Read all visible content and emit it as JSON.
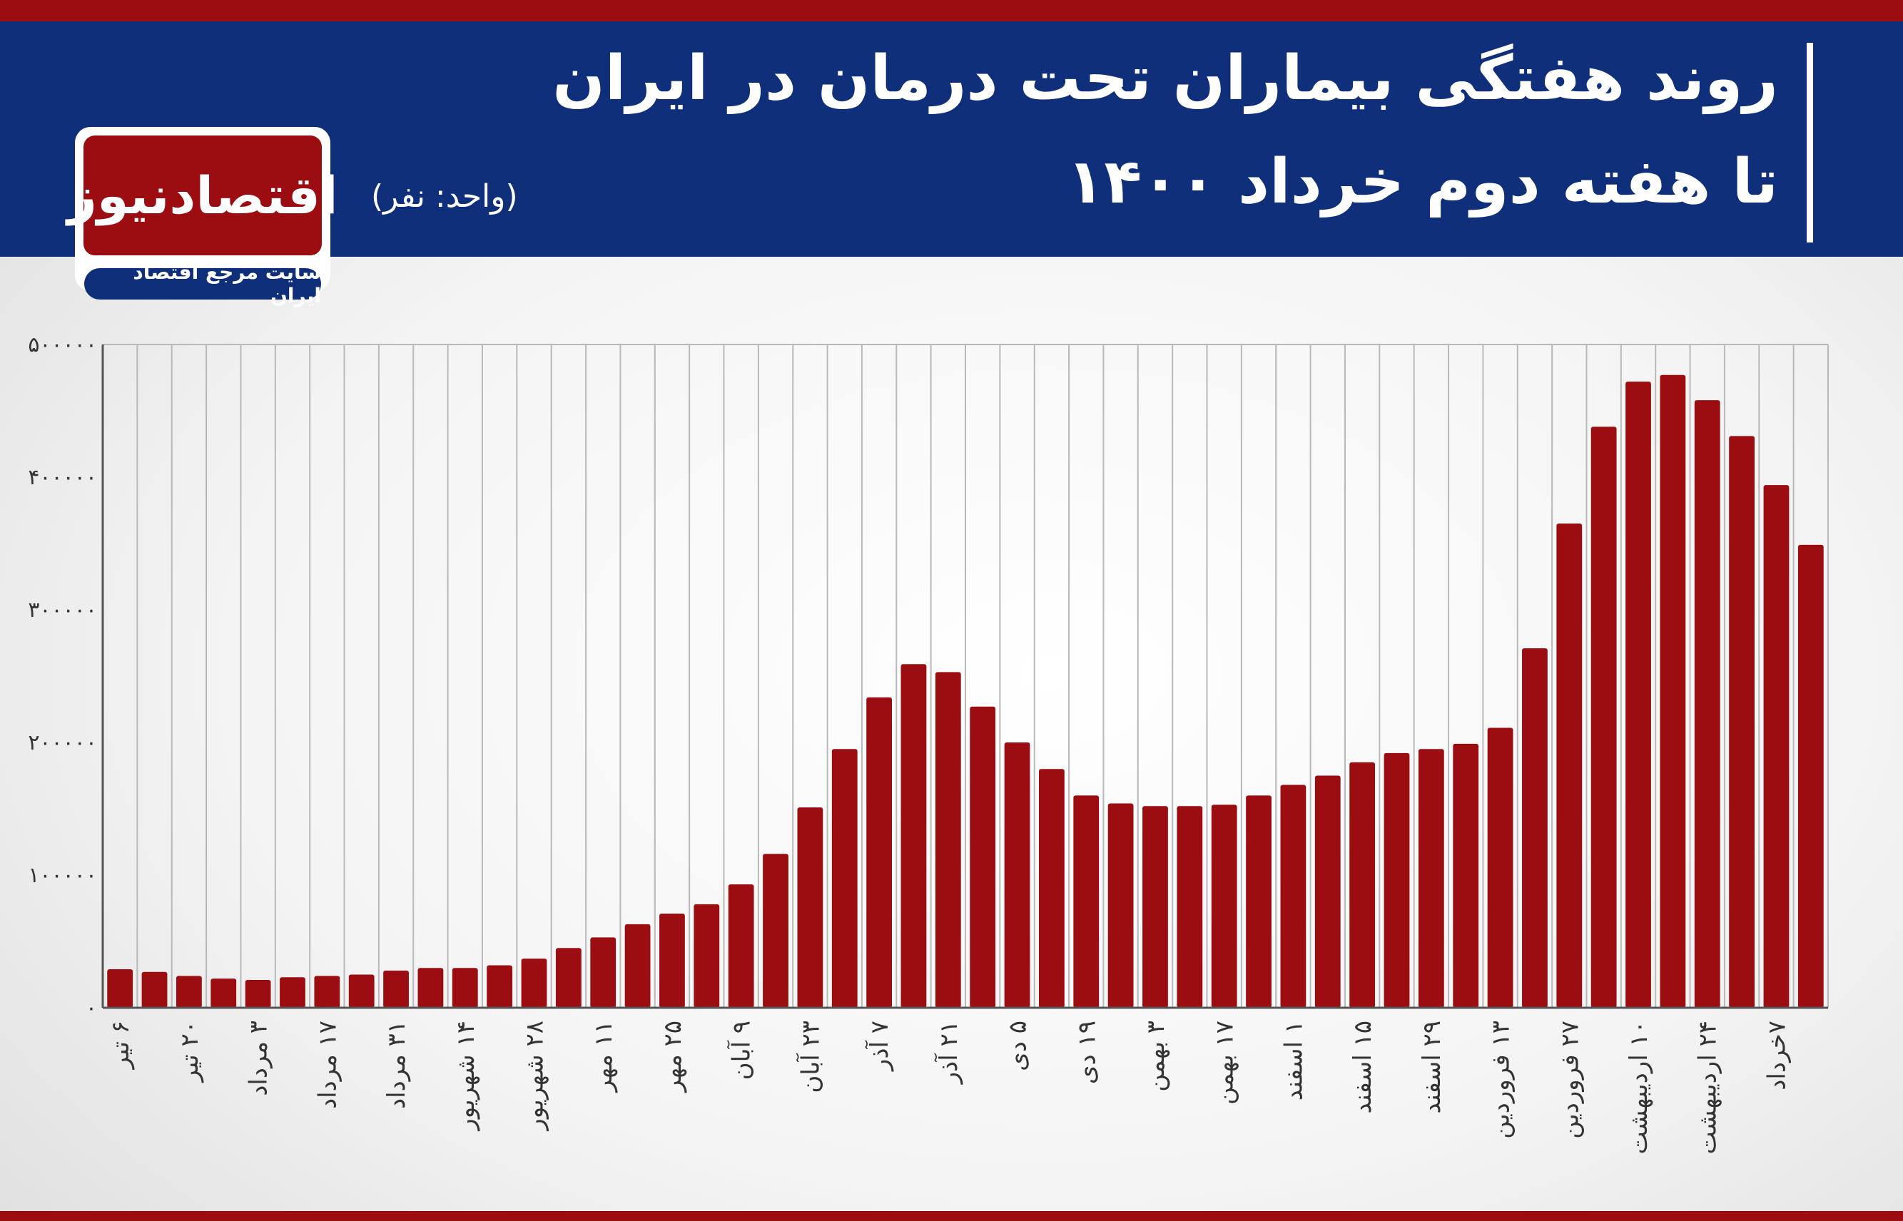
{
  "header": {
    "title_line1": "روند هفتگی بیماران تحت درمان در ایران",
    "title_line2": "تا هفته دوم خرداد ۱۴۰۰",
    "unit": "(واحد: نفر)"
  },
  "logo": {
    "name": "اقتصادنیوز",
    "tagline": "سایت مرجع اقتصاد ایران"
  },
  "colors": {
    "bar": "#9b0d10",
    "header": "#0f2f7a",
    "accent": "#9b0d10"
  },
  "chart_data": {
    "type": "bar",
    "title": "روند هفتگی بیماران تحت درمان در ایران",
    "subtitle": "تا هفته دوم خرداد ۱۴۰۰",
    "ylim": [
      0,
      500000
    ],
    "grid": true,
    "y_ticks": [
      "0",
      "100000",
      "200000",
      "300000",
      "400000",
      "500000"
    ],
    "categories": [
      "۶ تیر",
      "",
      "۲۰ تیر",
      "",
      "۳ مرداد",
      "",
      "۱۷ مرداد",
      "",
      "۳۱ مرداد",
      "",
      "۱۴ شهریور",
      "",
      "۲۸ شهریور",
      "",
      "۱۱ مهر",
      "",
      "۲۵ مهر",
      "",
      "۹ آبان",
      "",
      "۲۳ آبان",
      "",
      "۷ آذر",
      "",
      "۲۱ آذر",
      "",
      "۵ دی",
      "",
      "۱۹ دی",
      "",
      "۳ بهمن",
      "",
      "۱۷ بهمن",
      "",
      "۱ اسفند",
      "",
      "۱۵ اسفند",
      "",
      "۲۹ اسفند",
      "",
      "۱۳ فروردین",
      "",
      "۲۷ فروردین",
      "",
      "۱۰ اردیبهشت",
      "",
      "۲۴ اردیبهشت",
      "",
      "۷خرداد",
      ""
    ],
    "values": [
      29000,
      27000,
      24000,
      22000,
      21000,
      23000,
      24000,
      25000,
      28000,
      30000,
      30000,
      32000,
      37000,
      45000,
      53000,
      63000,
      71000,
      78000,
      93000,
      116000,
      151000,
      195000,
      234000,
      259000,
      253000,
      227000,
      200000,
      180000,
      160000,
      154000,
      152000,
      152000,
      153000,
      160000,
      168000,
      175000,
      185000,
      192000,
      195000,
      199000,
      211000,
      271000,
      365000,
      438000,
      472000,
      477000,
      458000,
      431000,
      394000,
      349000
    ]
  }
}
